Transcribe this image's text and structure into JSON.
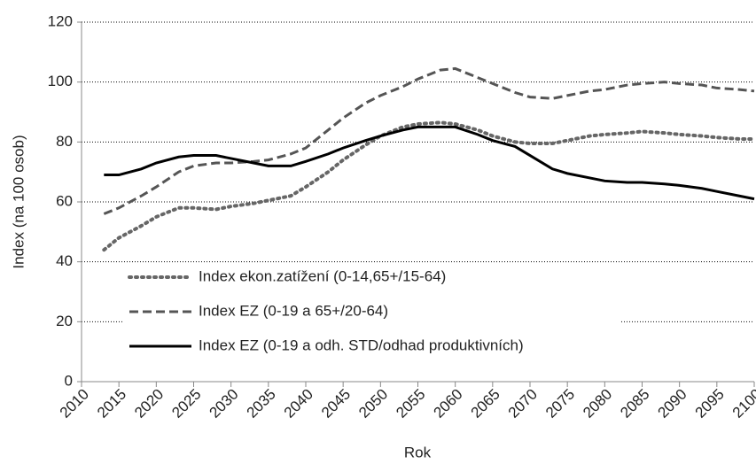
{
  "chart_data": {
    "type": "line",
    "x_label": "Rok",
    "y_label": "Index (na 100 osob)",
    "x": [
      2013,
      2015,
      2018,
      2020,
      2023,
      2025,
      2028,
      2030,
      2033,
      2035,
      2038,
      2040,
      2043,
      2045,
      2048,
      2050,
      2053,
      2055,
      2058,
      2060,
      2063,
      2065,
      2068,
      2070,
      2073,
      2075,
      2078,
      2080,
      2083,
      2085,
      2088,
      2090,
      2093,
      2095,
      2098,
      2100
    ],
    "series": [
      {
        "name": "Index ekon.zatížení (0-14,65+/15-64)",
        "color": "#666666",
        "line_style": "dotted",
        "values": [
          44,
          48,
          52,
          55,
          58,
          58,
          57.5,
          58.5,
          59.5,
          60.5,
          62,
          65,
          70,
          74,
          79,
          82,
          85,
          86,
          86.5,
          86,
          84,
          82,
          80,
          79.5,
          79.5,
          80.5,
          82,
          82.5,
          83,
          83.5,
          83,
          82.5,
          82,
          81.5,
          81,
          81
        ]
      },
      {
        "name": "Index EZ (0-19 a 65+/20-64)",
        "color": "#555555",
        "line_style": "dashed",
        "values": [
          56,
          58,
          62,
          65,
          70,
          72,
          73,
          73,
          73.5,
          74,
          76,
          78,
          84,
          88,
          93,
          95.5,
          98.5,
          101,
          104,
          104.5,
          101.5,
          99.5,
          96.5,
          95,
          94.5,
          95.5,
          97,
          97.5,
          99,
          99.5,
          100,
          99.5,
          99,
          98,
          97.5,
          97
        ]
      },
      {
        "name": "Index EZ (0-19 a odh. STD/odhad produktivních)",
        "color": "#000000",
        "line_style": "solid",
        "values": [
          69,
          69,
          71,
          73,
          75,
          75.5,
          75.5,
          74.5,
          73,
          72,
          72,
          73.5,
          76,
          78,
          80.5,
          82,
          84,
          85,
          85,
          85,
          82.5,
          80.5,
          78.5,
          75.5,
          71,
          69.5,
          68,
          67,
          66.5,
          66.5,
          66,
          65.5,
          64.5,
          63.5,
          62,
          61
        ]
      }
    ],
    "xlim": [
      2010,
      2100
    ],
    "xticks": [
      2010,
      2015,
      2020,
      2025,
      2030,
      2035,
      2040,
      2045,
      2050,
      2055,
      2060,
      2065,
      2070,
      2075,
      2080,
      2085,
      2090,
      2095,
      2100
    ],
    "ylim": [
      0,
      120
    ],
    "yticks": [
      0,
      20,
      40,
      60,
      80,
      100,
      120
    ],
    "grid": true,
    "legend": "lower left"
  }
}
